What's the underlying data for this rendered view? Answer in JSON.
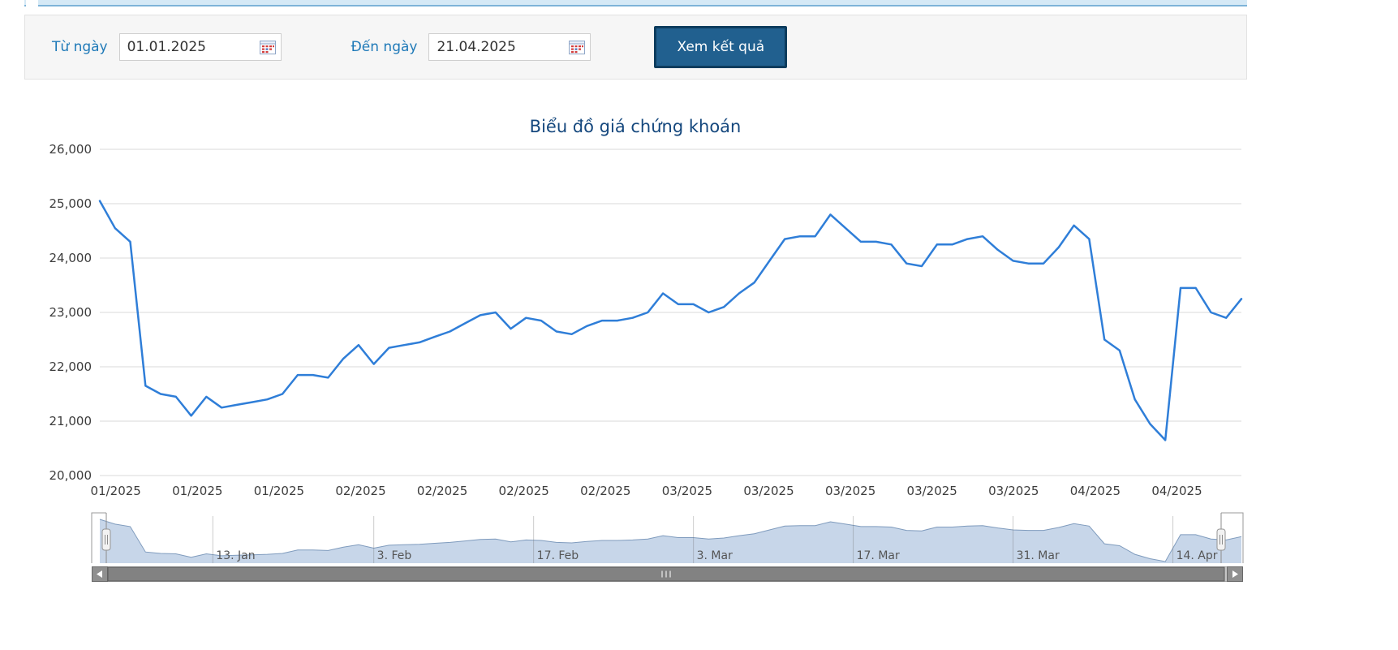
{
  "filter": {
    "from_label": "Từ ngày",
    "from_value": "01.01.2025",
    "to_label": "Đến ngày",
    "to_value": "21.04.2025",
    "submit_label": "Xem kết quả"
  },
  "colors": {
    "series_line": "#2f7ed8",
    "grid_line": "#d8d8d8",
    "axis_text": "#3c3c3c",
    "title_text": "#14477d",
    "label_blue": "#1e79b8",
    "button_bg": "#21608f",
    "button_border": "#0d3c5d",
    "nav_fill": "#c7d6e9",
    "nav_line": "#7f9bbd",
    "nav_label": "#555555",
    "nav_grid": "rgba(110,110,110,0.35)",
    "outline": "#999999",
    "sb_track": "#c6c6c6",
    "sb_thumb": "#828282",
    "sb_button": "#8f8f8f"
  },
  "chart_data": {
    "type": "line",
    "title": "Biểu đồ giá chứng khoán",
    "xlabel": "",
    "ylabel": "",
    "ylim": [
      20000,
      26000
    ],
    "grid": true,
    "legend": false,
    "y_ticks": [
      {
        "value": 20000,
        "label": "20,000"
      },
      {
        "value": 21000,
        "label": "21,000"
      },
      {
        "value": 22000,
        "label": "22,000"
      },
      {
        "value": 23000,
        "label": "23,000"
      },
      {
        "value": 24000,
        "label": "24,000"
      },
      {
        "value": 25000,
        "label": "25,000"
      },
      {
        "value": 26000,
        "label": "26,000"
      }
    ],
    "x_ticks": [
      {
        "label": "01/2025",
        "pos": 0.014
      },
      {
        "label": "01/2025",
        "pos": 0.0855
      },
      {
        "label": "01/2025",
        "pos": 0.157
      },
      {
        "label": "02/2025",
        "pos": 0.2285
      },
      {
        "label": "02/2025",
        "pos": 0.3
      },
      {
        "label": "02/2025",
        "pos": 0.3715
      },
      {
        "label": "02/2025",
        "pos": 0.443
      },
      {
        "label": "03/2025",
        "pos": 0.5145
      },
      {
        "label": "03/2025",
        "pos": 0.586
      },
      {
        "label": "03/2025",
        "pos": 0.6575
      },
      {
        "label": "03/2025",
        "pos": 0.729
      },
      {
        "label": "03/2025",
        "pos": 0.8005
      },
      {
        "label": "04/2025",
        "pos": 0.872
      },
      {
        "label": "04/2025",
        "pos": 0.9435
      }
    ],
    "values": [
      25050,
      24550,
      24300,
      21650,
      21500,
      21450,
      21100,
      21450,
      21250,
      21300,
      21350,
      21400,
      21500,
      21850,
      21850,
      21800,
      22150,
      22400,
      22050,
      22350,
      22400,
      22450,
      22550,
      22650,
      22800,
      22950,
      23000,
      22700,
      22900,
      22850,
      22650,
      22600,
      22750,
      22850,
      22850,
      22900,
      23000,
      23350,
      23150,
      23150,
      23000,
      23100,
      23350,
      23550,
      23950,
      24350,
      24400,
      24400,
      24800,
      24550,
      24300,
      24300,
      24250,
      23900,
      23850,
      24250,
      24250,
      24350,
      24400,
      24150,
      23950,
      23900,
      23900,
      24200,
      24600,
      24350,
      22500,
      22300,
      21400,
      20950,
      20650,
      23450,
      23450,
      23000,
      22900,
      23250
    ],
    "navigator_ticks": [
      {
        "label": "13. Jan",
        "pos": 0.099
      },
      {
        "label": "3. Feb",
        "pos": 0.24
      },
      {
        "label": "17. Feb",
        "pos": 0.38
      },
      {
        "label": "3. Mar",
        "pos": 0.52
      },
      {
        "label": "17. Mar",
        "pos": 0.66
      },
      {
        "label": "31. Mar",
        "pos": 0.8
      },
      {
        "label": "14. Apr",
        "pos": 0.94
      }
    ]
  }
}
